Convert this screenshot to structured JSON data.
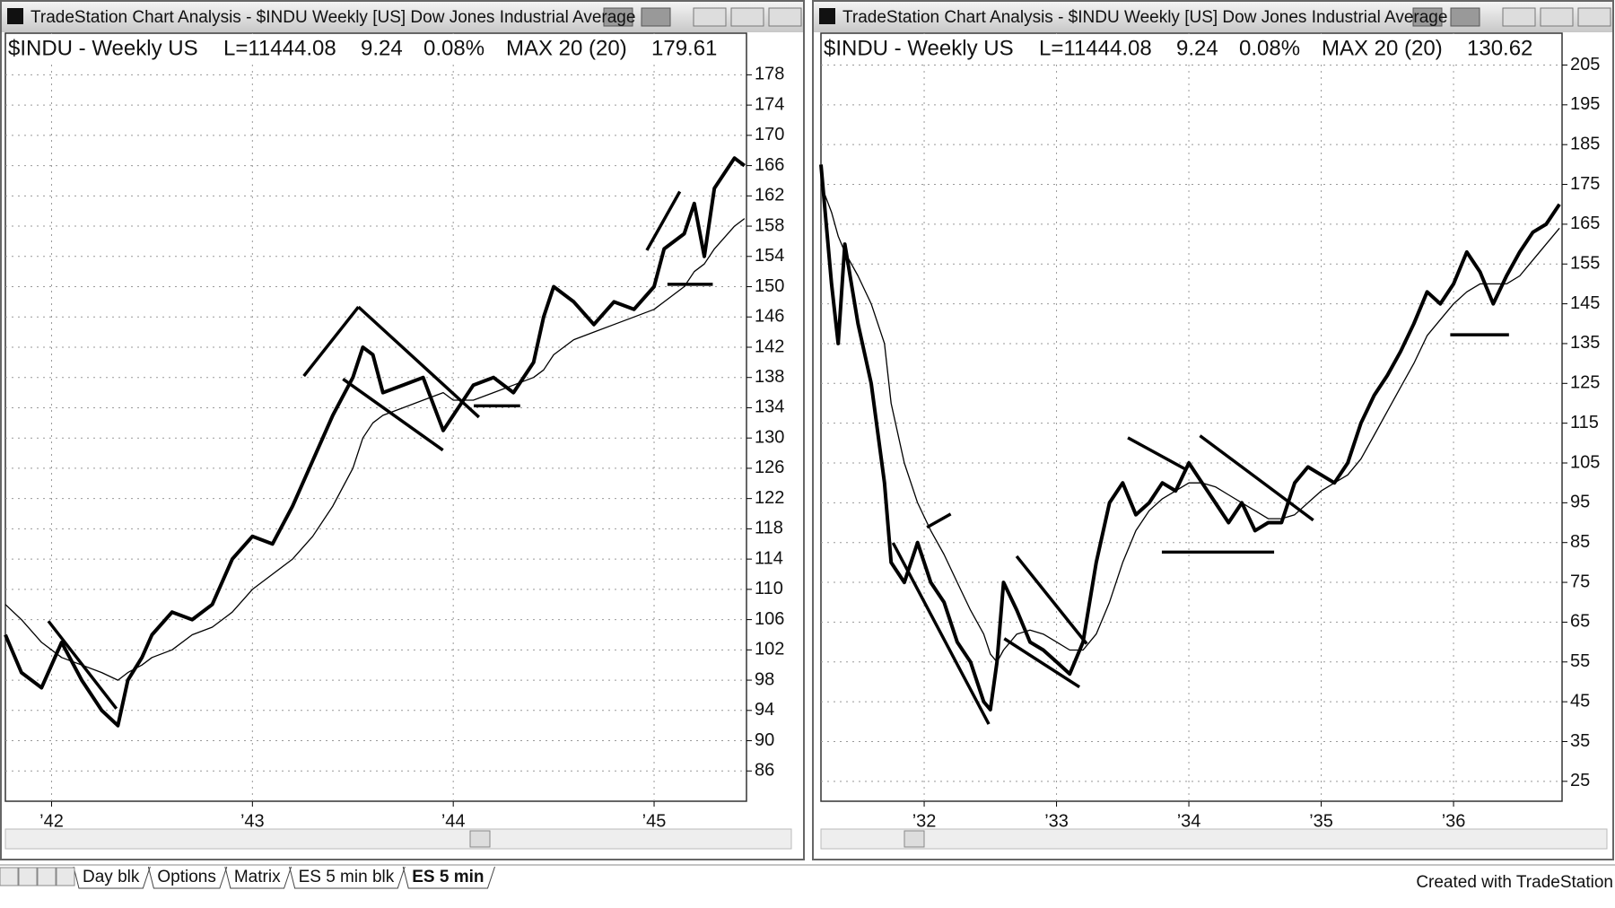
{
  "chart_data": [
    {
      "type": "line",
      "window_title": "TradeStation Chart Analysis - $INDU Weekly [US] Dow Jones Industrial Average",
      "header": [
        "$INDU - Weekly US",
        "L=11444.08",
        "9.24",
        "0.08%",
        "MAX 20 (20)",
        "179.61"
      ],
      "x": [
        1941.77,
        1941.85,
        1941.95,
        1942.05,
        1942.15,
        1942.25,
        1942.33,
        1942.38,
        1942.45,
        1942.5,
        1942.6,
        1942.7,
        1942.8,
        1942.9,
        1943.0,
        1943.1,
        1943.2,
        1943.3,
        1943.4,
        1943.5,
        1943.55,
        1943.6,
        1943.65,
        1943.75,
        1943.85,
        1943.95,
        1944.0,
        1944.1,
        1944.2,
        1944.3,
        1944.4,
        1944.45,
        1944.5,
        1944.6,
        1944.7,
        1944.8,
        1944.9,
        1945.0,
        1945.05,
        1945.15,
        1945.2,
        1945.25,
        1945.3,
        1945.4,
        1945.45
      ],
      "series": [
        {
          "color": "#000000",
          "line_width": 4,
          "values": [
            104,
            99,
            97,
            103,
            98,
            94,
            92,
            98,
            101,
            104,
            107,
            106,
            108,
            114,
            117,
            116,
            121,
            127,
            133,
            138,
            142,
            141,
            136,
            137,
            138,
            131,
            133,
            137,
            138,
            136,
            140,
            146,
            150,
            148,
            145,
            148,
            147,
            150,
            155,
            157,
            161,
            154,
            163,
            167,
            166
          ]
        },
        {
          "color": "#000000",
          "line_width": 1.3,
          "values": [
            108,
            106,
            103,
            101,
            100,
            99,
            98,
            99,
            100,
            101,
            102,
            104,
            105,
            107,
            110,
            112,
            114,
            117,
            121,
            126,
            130,
            132,
            133,
            134,
            135,
            136,
            135,
            135,
            136,
            137,
            138,
            139,
            141,
            143,
            144,
            145,
            146,
            147,
            148,
            150,
            152,
            153,
            155,
            158,
            159
          ]
        }
      ],
      "xlim": [
        1941.77,
        1945.46
      ],
      "xticks": [
        {
          "value": 1942,
          "label": "’42"
        },
        {
          "value": 1943,
          "label": "’43"
        },
        {
          "value": 1944,
          "label": "’44"
        },
        {
          "value": 1945,
          "label": "’45"
        }
      ],
      "ylim": [
        82,
        183.5
      ],
      "yticks": [
        86,
        90,
        94,
        98,
        102,
        106,
        110,
        114,
        118,
        122,
        126,
        130,
        134,
        138,
        142,
        146,
        150,
        154,
        158,
        162,
        166,
        170,
        174,
        178
      ],
      "grid": true
    },
    {
      "type": "line",
      "window_title": "TradeStation Chart Analysis - $INDU Weekly [US] Dow Jones Industrial Average",
      "header": [
        "$INDU - Weekly US",
        "L=11444.08",
        "9.24",
        "0.08%",
        "MAX 20 (20)",
        "130.62"
      ],
      "x": [
        1931.22,
        1931.3,
        1931.35,
        1931.4,
        1931.5,
        1931.6,
        1931.7,
        1931.75,
        1931.85,
        1931.95,
        1932.05,
        1932.15,
        1932.25,
        1932.35,
        1932.45,
        1932.5,
        1932.55,
        1932.6,
        1932.7,
        1932.8,
        1932.9,
        1933.0,
        1933.1,
        1933.2,
        1933.3,
        1933.4,
        1933.5,
        1933.6,
        1933.7,
        1933.8,
        1933.9,
        1934.0,
        1934.1,
        1934.2,
        1934.3,
        1934.4,
        1934.5,
        1934.6,
        1934.7,
        1934.8,
        1934.9,
        1935.0,
        1935.1,
        1935.2,
        1935.3,
        1935.4,
        1935.5,
        1935.6,
        1935.7,
        1935.8,
        1935.9,
        1936.0,
        1936.1,
        1936.2,
        1936.3,
        1936.4,
        1936.5,
        1936.6,
        1936.7,
        1936.8
      ],
      "series": [
        {
          "color": "#000000",
          "line_width": 4,
          "values": [
            180,
            150,
            135,
            160,
            140,
            125,
            100,
            80,
            75,
            85,
            75,
            70,
            60,
            55,
            45,
            43,
            55,
            75,
            68,
            60,
            58,
            55,
            52,
            60,
            80,
            95,
            100,
            92,
            95,
            100,
            98,
            105,
            100,
            95,
            90,
            95,
            88,
            90,
            90,
            100,
            104,
            102,
            100,
            105,
            115,
            122,
            127,
            133,
            140,
            148,
            145,
            150,
            158,
            153,
            145,
            152,
            158,
            163,
            165,
            170
          ]
        },
        {
          "color": "#000000",
          "line_width": 1.3,
          "values": [
            175,
            168,
            162,
            158,
            152,
            145,
            135,
            120,
            105,
            95,
            88,
            82,
            75,
            68,
            62,
            57,
            55,
            58,
            62,
            63,
            62,
            60,
            58,
            58,
            62,
            70,
            80,
            88,
            93,
            96,
            98,
            100,
            100,
            99,
            97,
            95,
            93,
            91,
            91,
            92,
            95,
            98,
            100,
            102,
            106,
            112,
            118,
            124,
            130,
            137,
            141,
            145,
            148,
            150,
            150,
            150,
            152,
            156,
            160,
            164
          ]
        }
      ],
      "xlim": [
        1931.22,
        1936.82
      ],
      "xticks": [
        {
          "value": 1932,
          "label": "’32"
        },
        {
          "value": 1933,
          "label": "’33"
        },
        {
          "value": 1934,
          "label": "’34"
        },
        {
          "value": 1935,
          "label": "’35"
        },
        {
          "value": 1936,
          "label": "’36"
        }
      ],
      "ylim": [
        20,
        213
      ],
      "yticks": [
        25,
        35,
        45,
        55,
        65,
        75,
        85,
        95,
        105,
        115,
        125,
        135,
        145,
        155,
        165,
        175,
        185,
        195,
        205
      ],
      "grid": true
    }
  ],
  "tabs": [
    "Day blk",
    "Options",
    "Matrix",
    "ES 5 min blk",
    "ES 5 min"
  ],
  "footer": "Created with TradeStation"
}
